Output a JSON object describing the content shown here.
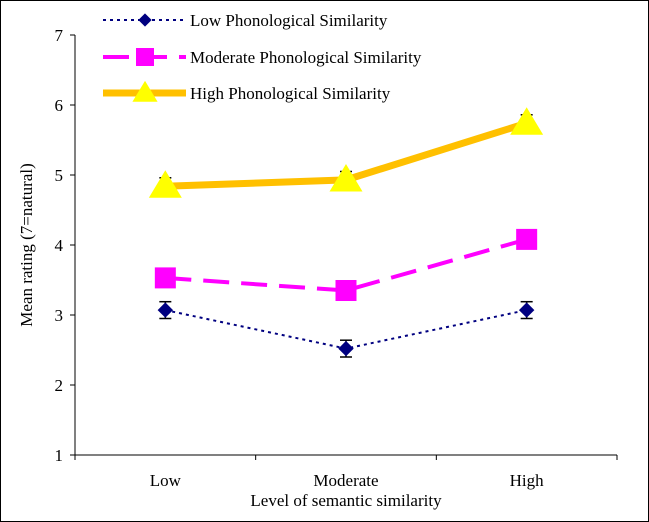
{
  "chart_data": {
    "type": "line",
    "xlabel": "Level of semantic similarity",
    "ylabel": "Mean rating (7=natural)",
    "categories": [
      "Low",
      "Moderate",
      "High"
    ],
    "ylim": [
      1,
      7
    ],
    "yticks": [
      "1",
      "2",
      "3",
      "4",
      "5",
      "6",
      "7"
    ],
    "grid": false,
    "legend_position": "top-left",
    "series": [
      {
        "name": "Low Phonological Similarity",
        "values": [
          3.07,
          2.52,
          3.07
        ],
        "errors": [
          0.12,
          0.12,
          0.12
        ],
        "color": "#000080",
        "line_style": "dotted",
        "marker": "diamond"
      },
      {
        "name": "Moderate Phonological Similarity",
        "values": [
          3.53,
          3.35,
          4.08
        ],
        "errors": [
          0.13,
          0.13,
          0.13
        ],
        "color": "#ff00ff",
        "line_style": "dashed",
        "marker": "square"
      },
      {
        "name": "High Phonological Similarity",
        "values": [
          4.84,
          4.93,
          5.74
        ],
        "errors": [
          0.12,
          0.12,
          0.12
        ],
        "color": "#ffc000",
        "marker_color": "#ffff00",
        "line_style": "solid",
        "marker": "triangle"
      }
    ]
  }
}
